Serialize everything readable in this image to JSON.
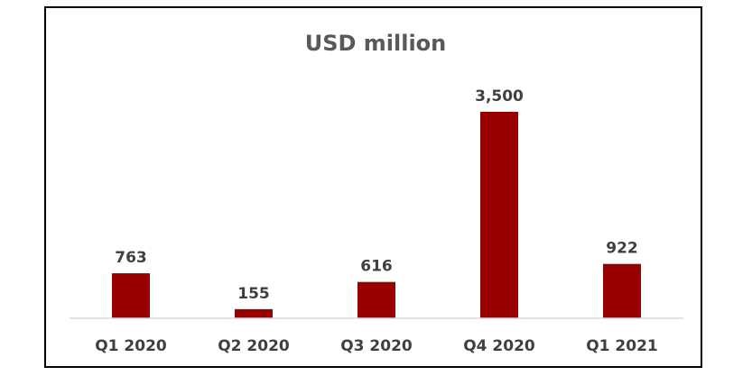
{
  "chart_data": {
    "type": "bar",
    "title": "USD million",
    "categories": [
      "Q1 2020",
      "Q2 2020",
      "Q3 2020",
      "Q4 2020",
      "Q1 2021"
    ],
    "values": [
      763,
      155,
      616,
      3500,
      922
    ],
    "data_labels": [
      "763",
      "155",
      "616",
      "3,500",
      "922"
    ],
    "xlabel": "",
    "ylabel": "",
    "ylim": [
      0,
      3500
    ],
    "grid": false,
    "legend": "none",
    "bar_color": "#990000"
  }
}
